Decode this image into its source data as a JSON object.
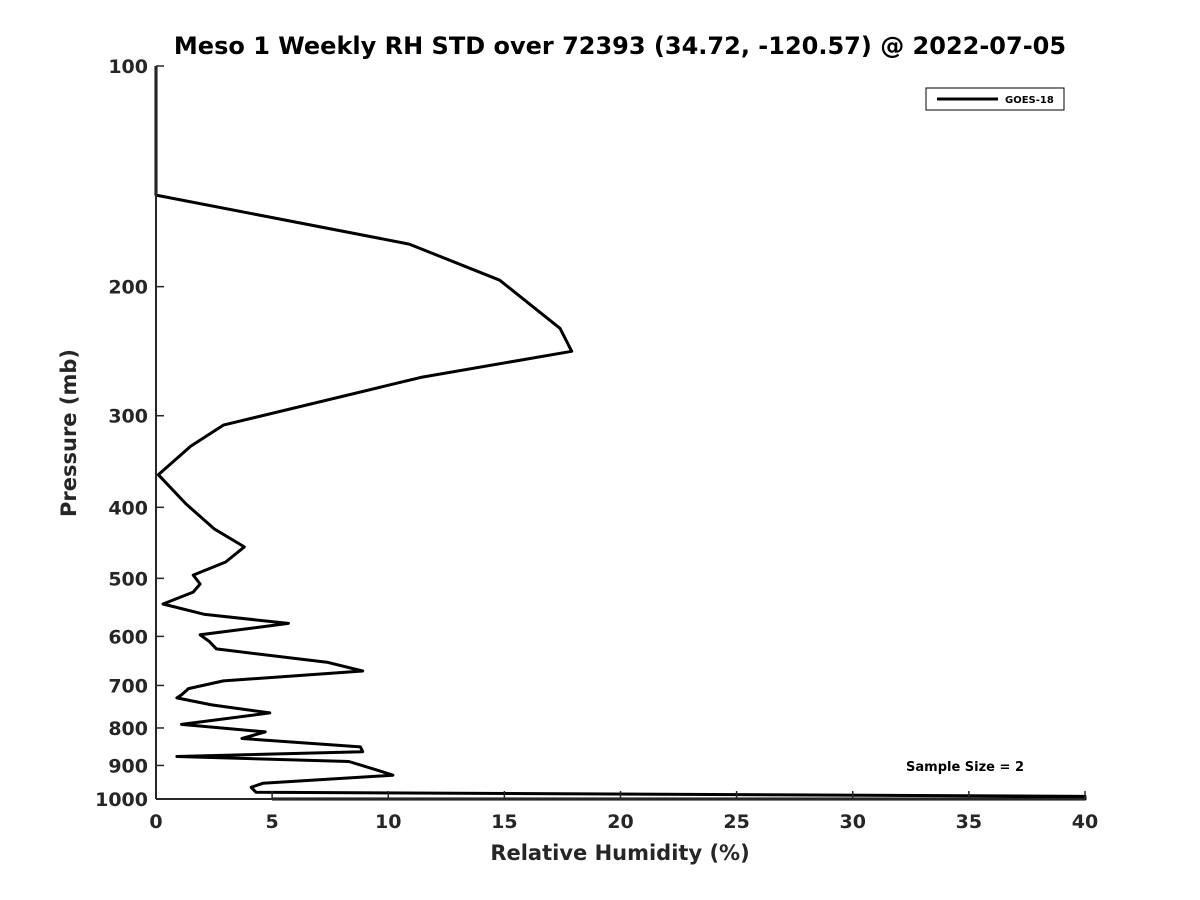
{
  "chart_data": {
    "type": "line",
    "title": "Meso 1 Weekly RH STD over 72393 (34.72, -120.57) @ 2022-07-05",
    "xlabel": "Relative Humidity (%)",
    "ylabel": "Pressure (mb)",
    "xlim": [
      0,
      40
    ],
    "ylim": [
      100,
      1000
    ],
    "y_scale": "log",
    "y_reversed": true,
    "x_ticks": [
      0,
      5,
      10,
      15,
      20,
      25,
      30,
      35,
      40
    ],
    "y_ticks": [
      100,
      200,
      300,
      400,
      500,
      600,
      700,
      800,
      900,
      1000
    ],
    "grid": false,
    "legend": {
      "placement": "top-right",
      "entries": [
        "GOES-18"
      ]
    },
    "annotation": "Sample Size = 2",
    "series": [
      {
        "name": "GOES-18",
        "color": "#000000",
        "points": [
          [
            0.0,
            100
          ],
          [
            0.0,
            150
          ],
          [
            10.9,
            175
          ],
          [
            14.8,
            196
          ],
          [
            17.4,
            228
          ],
          [
            17.9,
            245
          ],
          [
            11.4,
            266
          ],
          [
            2.9,
            309
          ],
          [
            1.5,
            330
          ],
          [
            0.1,
            361
          ],
          [
            1.3,
            396
          ],
          [
            2.5,
            428
          ],
          [
            3.8,
            453
          ],
          [
            3.0,
            475
          ],
          [
            1.6,
            495
          ],
          [
            1.9,
            509
          ],
          [
            1.6,
            522
          ],
          [
            0.3,
            542
          ],
          [
            2.1,
            560
          ],
          [
            5.7,
            576
          ],
          [
            1.9,
            597
          ],
          [
            2.3,
            610
          ],
          [
            2.6,
            624
          ],
          [
            7.4,
            651
          ],
          [
            8.9,
            669
          ],
          [
            2.9,
            690
          ],
          [
            1.4,
            707
          ],
          [
            1.1,
            721
          ],
          [
            0.9,
            728
          ],
          [
            2.4,
            744
          ],
          [
            4.9,
            763
          ],
          [
            1.1,
            791
          ],
          [
            4.7,
            810
          ],
          [
            3.7,
            827
          ],
          [
            8.8,
            849
          ],
          [
            8.9,
            862
          ],
          [
            0.9,
            875
          ],
          [
            8.3,
            889
          ],
          [
            9.6,
            915
          ],
          [
            10.2,
            928
          ],
          [
            4.6,
            952
          ],
          [
            4.1,
            964
          ],
          [
            4.3,
            979
          ],
          [
            40.0,
            992
          ],
          [
            40.0,
            1000
          ],
          [
            5.0,
            1000
          ]
        ]
      }
    ]
  }
}
